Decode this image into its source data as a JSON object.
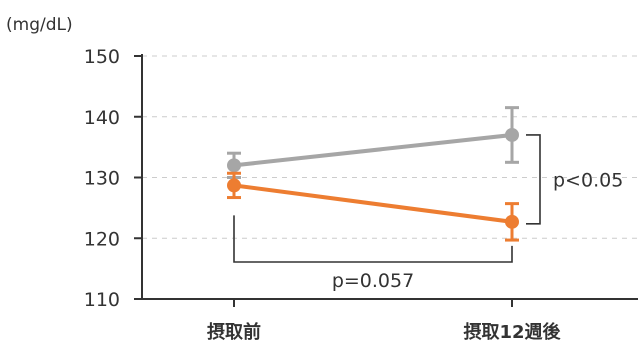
{
  "chart_data": {
    "type": "line",
    "ylabel": "(mg/dL)",
    "ylim": [
      110,
      150
    ],
    "yticks": [
      110,
      120,
      130,
      140,
      150
    ],
    "ytick_labels": [
      "110",
      "120",
      "130",
      "140",
      "150"
    ],
    "categories": [
      "摂取前",
      "摂取12週後"
    ],
    "grid": true,
    "series": [
      {
        "color": "#a6a6a6",
        "values": [
          132,
          137
        ],
        "errors": [
          2,
          4.5
        ]
      },
      {
        "color": "#ed7d31",
        "values": [
          128.7,
          122.7
        ],
        "errors": [
          2,
          3
        ]
      }
    ],
    "annotations": [
      {
        "text": "p<0.05"
      },
      {
        "text": "p=0.057"
      }
    ],
    "bracket_color": "#333333",
    "axis_color": "#333333",
    "grid_color": "#cccccc"
  }
}
